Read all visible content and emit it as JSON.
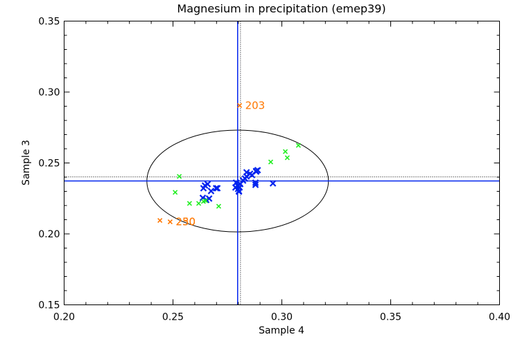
{
  "chart_data": {
    "type": "scatter",
    "title": "Magnesium in precipitation (emep39)",
    "xlabel": "Sample 4",
    "ylabel": "Sample 3",
    "xlim": [
      0.2,
      0.4
    ],
    "ylim": [
      0.15,
      0.35
    ],
    "xticks": [
      "0.20",
      "0.25",
      "0.30",
      "0.35",
      "0.40"
    ],
    "yticks": [
      "0.15",
      "0.20",
      "0.25",
      "0.30",
      "0.35"
    ],
    "xtick_values": [
      0.2,
      0.25,
      0.3,
      0.35,
      0.4
    ],
    "ytick_values": [
      0.15,
      0.2,
      0.25,
      0.3,
      0.35
    ],
    "minor_tick_step": 0.01,
    "grid": false,
    "colors": {
      "blue": "#0022ee",
      "green": "#22ee22",
      "orange": "#ff7700",
      "ellipse": "#000000"
    },
    "series": [
      {
        "name": "blue",
        "color": "#0022ee",
        "marker": "x",
        "x": [
          0.2647,
          0.2659,
          0.264,
          0.2675,
          0.2698,
          0.2704,
          0.2637,
          0.2653,
          0.2666,
          0.279,
          0.2796,
          0.2799,
          0.2803,
          0.2809,
          0.2822,
          0.2831,
          0.2838,
          0.2854,
          0.2863,
          0.2882,
          0.2879,
          0.2879,
          0.2959,
          0.2882,
          0.2838,
          0.2799,
          0.2806,
          0.2787,
          0.2803,
          0.2889
        ],
        "y": [
          0.2341,
          0.2351,
          0.2322,
          0.2302,
          0.2322,
          0.2322,
          0.2254,
          0.2239,
          0.2249,
          0.2361,
          0.2341,
          0.2317,
          0.2298,
          0.2351,
          0.2376,
          0.239,
          0.2434,
          0.2424,
          0.2415,
          0.2439,
          0.2361,
          0.2346,
          0.2356,
          0.2444,
          0.2405,
          0.2337,
          0.2327,
          0.2327,
          0.2302,
          0.2449
        ]
      },
      {
        "name": "green",
        "color": "#22ee22",
        "marker": "x",
        "x": [
          0.2529,
          0.251,
          0.2576,
          0.2618,
          0.264,
          0.265,
          0.271,
          0.3076,
          0.3016,
          0.3025,
          0.2949
        ],
        "y": [
          0.2405,
          0.2293,
          0.2215,
          0.2215,
          0.2229,
          0.2234,
          0.2195,
          0.2624,
          0.258,
          0.2537,
          0.2507
        ]
      },
      {
        "name": "orange",
        "color": "#ff7700",
        "marker": "x",
        "x": [
          0.2806,
          0.244,
          0.2487
        ],
        "y": [
          0.2905,
          0.2095,
          0.2085
        ]
      }
    ],
    "annotations": [
      {
        "text": "203",
        "x": 0.2806,
        "y": 0.2905
      },
      {
        "text": "230",
        "x": 0.2487,
        "y": 0.2085
      },
      {
        "text": "250",
        "x": 0.2487,
        "y": 0.2085
      }
    ],
    "reference_lines": {
      "solid_vertical_x": 0.2797,
      "dotted_vertical_x": 0.281,
      "solid_horizontal_y": 0.2373,
      "dotted_horizontal_y": 0.2402
    },
    "ellipse": {
      "cx": 0.2797,
      "cy": 0.2373,
      "rx": 0.0417,
      "ry": 0.0359
    }
  }
}
